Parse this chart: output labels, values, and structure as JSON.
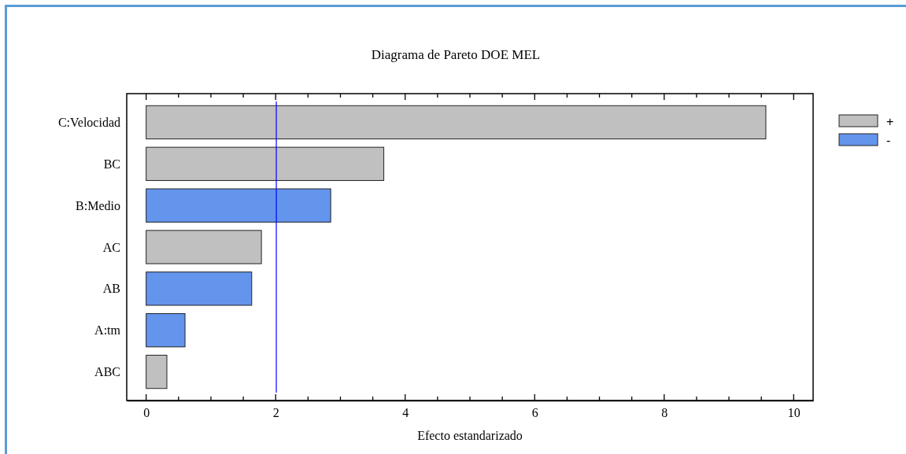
{
  "chart_data": {
    "type": "bar",
    "orientation": "horizontal",
    "title": "Diagrama de Pareto DOE MEL",
    "xlabel": "Efecto estandarizado",
    "categories": [
      "C:Velocidad",
      "BC",
      "B:Medio",
      "AC",
      "AB",
      "A:tm",
      "ABC"
    ],
    "series": [
      {
        "name": "+",
        "color": "#c0c0c0",
        "values": [
          9.57,
          3.67,
          null,
          1.78,
          null,
          null,
          0.32
        ]
      },
      {
        "name": "-",
        "color": "#6495ed",
        "values": [
          null,
          null,
          2.85,
          null,
          1.63,
          0.6,
          null
        ]
      }
    ],
    "xlim": [
      -0.3,
      10.3
    ],
    "xticks": [
      0,
      {
        "value": 0.5,
        "label": null
      },
      {
        "value": 1,
        "label": null
      },
      {
        "value": 1.5,
        "label": null
      },
      2,
      {
        "value": 2.5,
        "label": null
      },
      {
        "value": 3,
        "label": null
      },
      {
        "value": 3.5,
        "label": null
      },
      4,
      {
        "value": 4.5,
        "label": null
      },
      {
        "value": 5,
        "label": null
      },
      {
        "value": 5.5,
        "label": null
      },
      6,
      {
        "value": 6.5,
        "label": null
      },
      {
        "value": 7,
        "label": null
      },
      {
        "value": 7.5,
        "label": null
      },
      8,
      {
        "value": 8.5,
        "label": null
      },
      {
        "value": 9,
        "label": null
      },
      {
        "value": 9.5,
        "label": null
      },
      10
    ],
    "ref_lines": [
      {
        "axis": "x",
        "value": 2.01,
        "color": "#0000ff"
      }
    ],
    "legend": "right",
    "grid": false
  }
}
